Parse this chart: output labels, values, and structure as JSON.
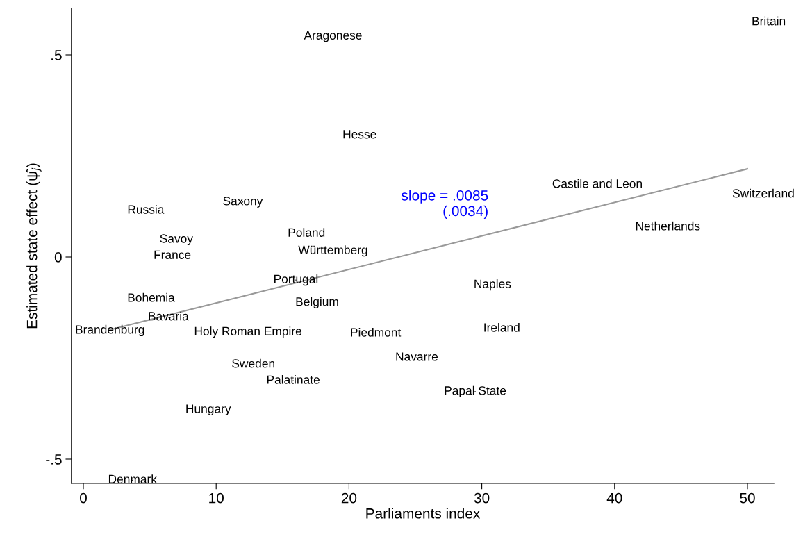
{
  "chart_data": {
    "type": "scatter",
    "xlabel": "Parliaments index",
    "ylabel": "Estimated state effect (ψ̂$_{j}$)",
    "xlim": [
      -0.9,
      52
    ],
    "ylim": [
      -0.56,
      0.615
    ],
    "xticks": [
      0,
      10,
      20,
      30,
      40,
      50
    ],
    "yticks": [
      {
        "value": -0.5,
        "label": "-.5"
      },
      0,
      {
        "value": 0.5,
        "label": ".5"
      }
    ],
    "grid": false,
    "annotations": [
      "slope = .0085\n(.0034)"
    ],
    "series": [
      {
        "marker": "none",
        "color": "#000000",
        "x": [
          51.6,
          18.8,
          20.8,
          38.7,
          51.2,
          4.7,
          12.0,
          16.8,
          44.0,
          7.0,
          18.8,
          6.7,
          16.0,
          30.8,
          5.1,
          17.6,
          6.4,
          2.0,
          12.4,
          22.0,
          31.5,
          25.1,
          12.8,
          15.8,
          29.5,
          9.4,
          3.7
        ],
        "values": [
          0.581,
          0.546,
          0.301,
          0.179,
          0.155,
          0.115,
          0.136,
          0.058,
          0.074,
          0.043,
          0.015,
          0.003,
          -0.057,
          -0.069,
          -0.103,
          -0.113,
          -0.149,
          -0.182,
          -0.186,
          -0.189,
          -0.177,
          -0.249,
          -0.266,
          -0.306,
          -0.333,
          -0.378,
          -0.552
        ],
        "value_labels": [
          "Britain",
          "Aragonese",
          "Hesse",
          "Castile and Leon",
          "Switzerland",
          "Russia",
          "Saxony",
          "Poland",
          "Netherlands",
          "Savoy",
          "Württemberg",
          "France",
          "Portugal",
          "Naples",
          "Bohemia",
          "Belgium",
          "Bavaria",
          "Brandenburg",
          "Holy Roman Empire",
          "Piedmont",
          "Ireland",
          "Navarre",
          "Sweden",
          "Palatinate",
          "Papal State",
          "Hungary",
          "Denmark"
        ]
      },
      {
        "type": "line",
        "color": "#999999",
        "line_style": "solid",
        "x": [
          2,
          50
        ],
        "values": [
          -0.18,
          0.218
        ]
      }
    ]
  }
}
